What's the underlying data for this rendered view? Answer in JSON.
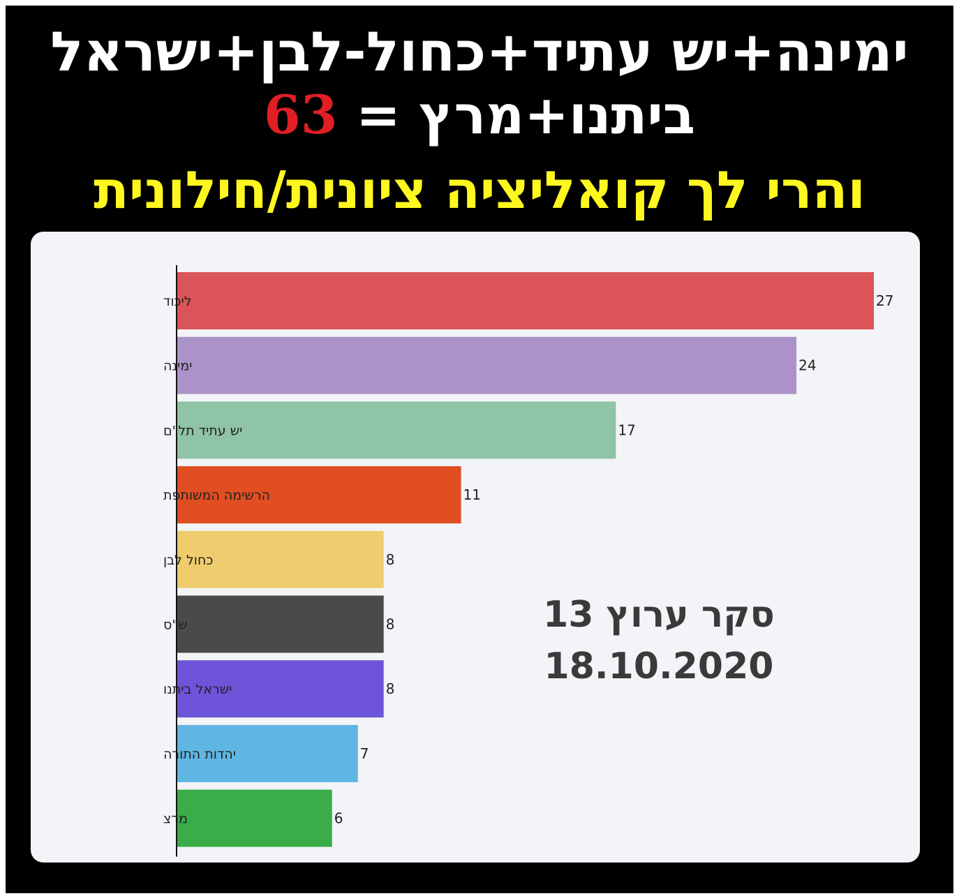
{
  "headline": {
    "line1": "ימינה+יש עתיד+כחול-לבן+ישראל",
    "line2_text": "ביתנו+מרץ = ",
    "line2_number": "63",
    "line3": "והרי לך קואליציה ציונית/חילונית"
  },
  "source_note": {
    "title": "סקר ערוץ 13",
    "date": "18.10.2020"
  },
  "colors": {
    "background": "#000000",
    "headline_white": "#ffffff",
    "headline_yellow": "#fff720",
    "headline_red": "#e01e24",
    "panel": "#f3f4f7"
  },
  "chart_data": {
    "type": "bar",
    "orientation": "horizontal",
    "categories": [
      "ליכוד",
      "ימינה",
      "יש עתיד תל\"ם",
      "הרשימה המשותפת",
      "כחול לבן",
      "ש\"ס",
      "ישראל ביתנו",
      "יהדות התורה",
      "מרצ"
    ],
    "values": [
      27,
      24,
      17,
      11,
      8,
      8,
      8,
      7,
      6
    ],
    "colors": [
      "#db5457",
      "#ab93c9",
      "#8fc4a7",
      "#e04e22",
      "#efcc6e",
      "#4a4a4a",
      "#6e54d9",
      "#60b6e3",
      "#3aad49"
    ],
    "xlim": [
      0,
      27
    ],
    "grid": false,
    "legend": "none",
    "data_labels": true
  }
}
